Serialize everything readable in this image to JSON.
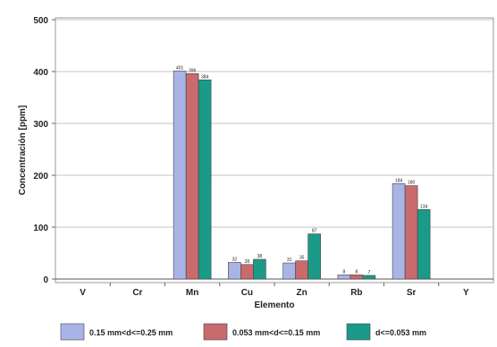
{
  "chart_data": {
    "type": "bar",
    "xlabel": "Elemento",
    "ylabel": "Concentración [ppm]",
    "ylim": [
      0,
      500
    ],
    "yticks": [
      0,
      100,
      200,
      300,
      400,
      500
    ],
    "grid": true,
    "legend_position": "bottom",
    "categories": [
      "V",
      "Cr",
      "Mn",
      "Cu",
      "Zn",
      "Rb",
      "Sr",
      "Y"
    ],
    "series": [
      {
        "name": "0.15 mm<d<=0.25 mm",
        "color": "#a9b4e6",
        "values": [
          null,
          null,
          401,
          32,
          31,
          8,
          184,
          null
        ],
        "labels": [
          "",
          "",
          "401",
          "32",
          "31",
          "8",
          "184",
          ""
        ]
      },
      {
        "name": "0.053 mm<d<=0.15 mm",
        "color": "#c96a6c",
        "values": [
          null,
          null,
          396,
          28,
          35,
          8,
          180,
          null
        ],
        "labels": [
          "",
          "",
          "396",
          "28",
          "35",
          "8",
          "180",
          ""
        ]
      },
      {
        "name": "d<=0.053 mm",
        "color": "#1b9a8a",
        "values": [
          null,
          null,
          384,
          38,
          87,
          7,
          134,
          null
        ],
        "labels": [
          "",
          "",
          "384",
          "38",
          "87",
          "7",
          "134",
          ""
        ]
      }
    ]
  }
}
